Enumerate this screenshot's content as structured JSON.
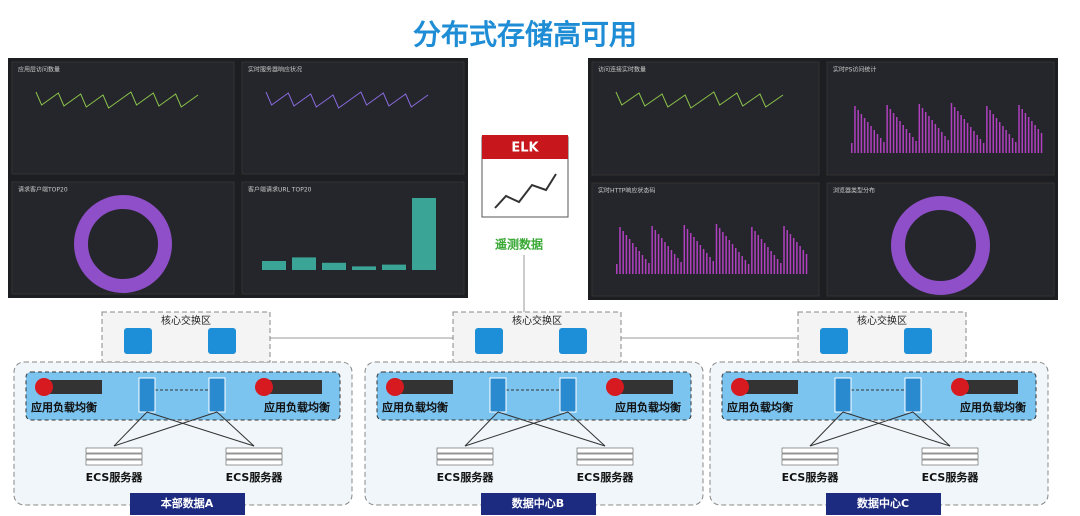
{
  "title": "分布式存储高可用",
  "elk": {
    "label": "ELK",
    "caption": "遥测数据"
  },
  "dashboards": [
    {
      "panels": [
        "应用层访问数量",
        "实时服务器响应状况",
        "请求客户端TOP20",
        "客户端请求URL TOP20"
      ]
    },
    {
      "panels": [
        "访问连接实时数量",
        "实时PS访问统计",
        "实时HTTP响应状态码",
        "浏览器类型分布"
      ]
    }
  ],
  "datacenters": [
    {
      "core": "核心交换区",
      "lb_left": "应用负载均衡",
      "lb_right": "应用负载均衡",
      "ecs_left": "ECS服务器",
      "ecs_right": "ECS服务器",
      "name": "本部数据A"
    },
    {
      "core": "核心交换区",
      "lb_left": "应用负载均衡",
      "lb_right": "应用负载均衡",
      "ecs_left": "ECS服务器",
      "ecs_right": "ECS服务器",
      "name": "数据中心B"
    },
    {
      "core": "核心交换区",
      "lb_left": "应用负载均衡",
      "lb_right": "应用负载均衡",
      "ecs_left": "ECS服务器",
      "ecs_right": "ECS服务器",
      "name": "数据中心C"
    }
  ]
}
